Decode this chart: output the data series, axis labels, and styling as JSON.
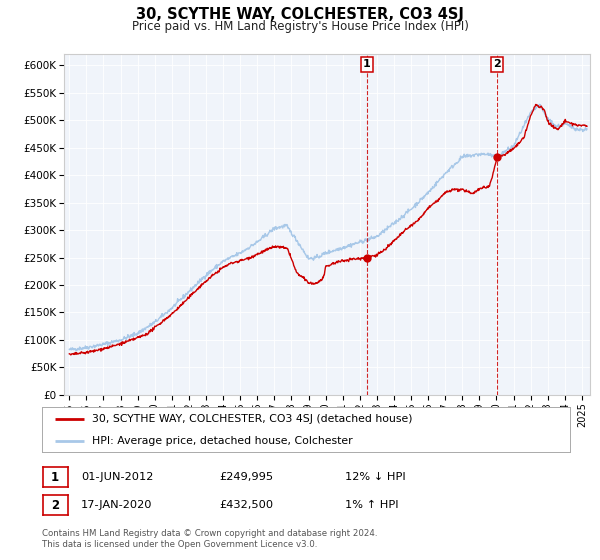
{
  "title": "30, SCYTHE WAY, COLCHESTER, CO3 4SJ",
  "subtitle": "Price paid vs. HM Land Registry's House Price Index (HPI)",
  "hpi_color": "#a8c8e8",
  "price_color": "#cc0000",
  "marker_color": "#cc0000",
  "vline_color": "#cc0000",
  "ylim": [
    0,
    620000
  ],
  "yticks": [
    0,
    50000,
    100000,
    150000,
    200000,
    250000,
    300000,
    350000,
    400000,
    450000,
    500000,
    550000,
    600000
  ],
  "ytick_labels": [
    "£0",
    "£50K",
    "£100K",
    "£150K",
    "£200K",
    "£250K",
    "£300K",
    "£350K",
    "£400K",
    "£450K",
    "£500K",
    "£550K",
    "£600K"
  ],
  "xlim_start": 1994.7,
  "xlim_end": 2025.5,
  "xticks": [
    1995,
    1996,
    1997,
    1998,
    1999,
    2000,
    2001,
    2002,
    2003,
    2004,
    2005,
    2006,
    2007,
    2008,
    2009,
    2010,
    2011,
    2012,
    2013,
    2014,
    2015,
    2016,
    2017,
    2018,
    2019,
    2020,
    2021,
    2022,
    2023,
    2024,
    2025
  ],
  "marker1_x": 2012.42,
  "marker1_y": 249995,
  "marker2_x": 2020.04,
  "marker2_y": 432500,
  "legend_entries": [
    "30, SCYTHE WAY, COLCHESTER, CO3 4SJ (detached house)",
    "HPI: Average price, detached house, Colchester"
  ],
  "annotation1_label": "1",
  "annotation1_date": "01-JUN-2012",
  "annotation1_price": "£249,995",
  "annotation1_hpi": "12% ↓ HPI",
  "annotation2_label": "2",
  "annotation2_date": "17-JAN-2020",
  "annotation2_price": "£432,500",
  "annotation2_hpi": "1% ↑ HPI",
  "footer": "Contains HM Land Registry data © Crown copyright and database right 2024.\nThis data is licensed under the Open Government Licence v3.0.",
  "background_color": "#f0f4fa",
  "grid_color": "#ffffff",
  "chart_border_color": "#cccccc"
}
